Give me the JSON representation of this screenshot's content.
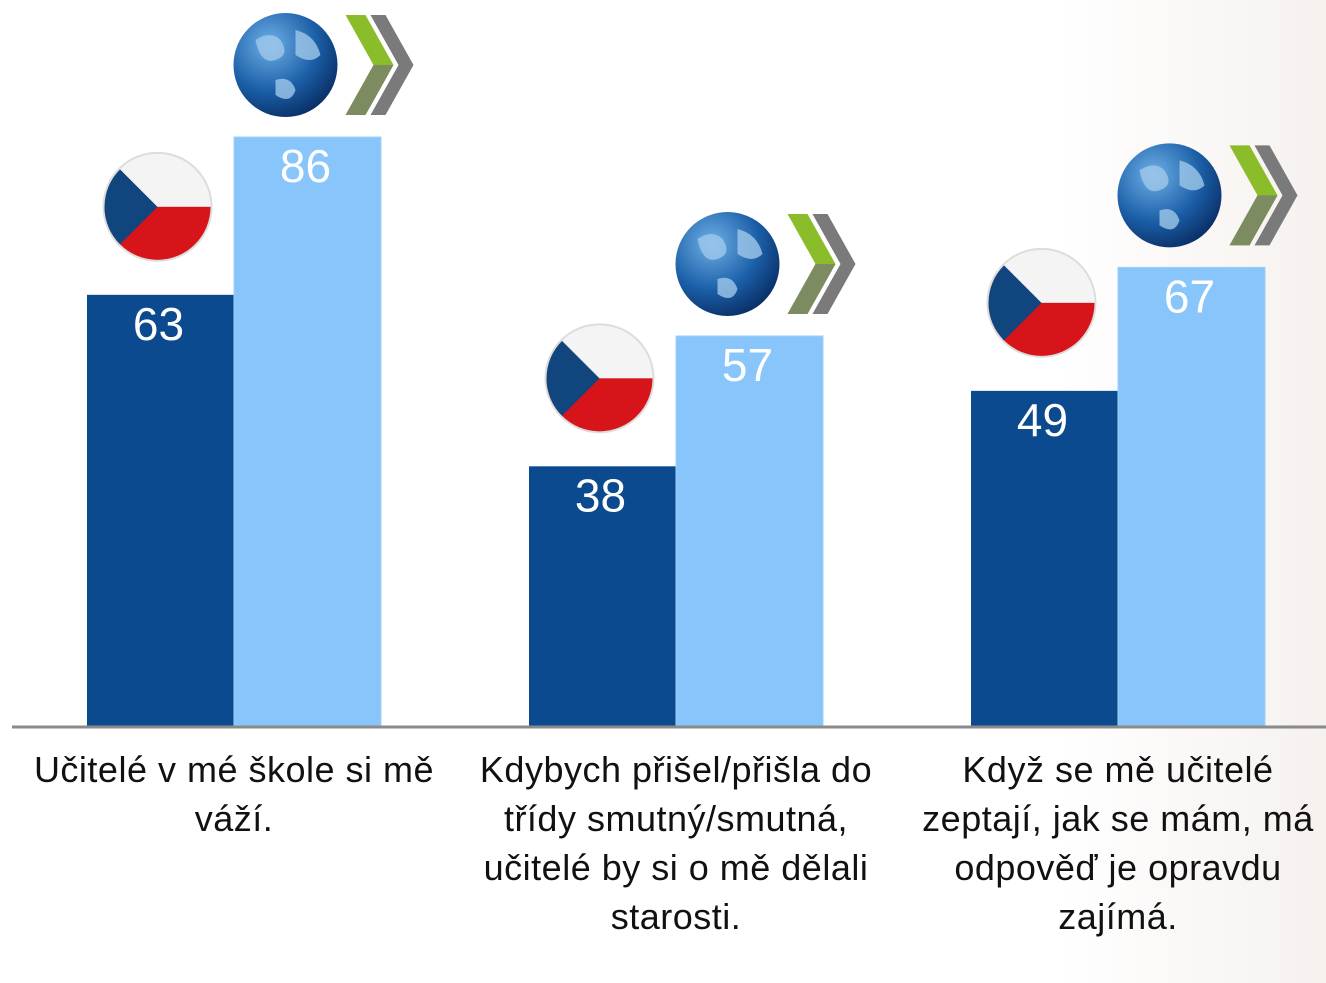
{
  "chart_data": {
    "type": "bar",
    "categories": [
      "Učitelé v mé škole si mě váží.",
      "Kdybych přišel/přišla do třídy smutný/smutná, učitelé by si o mě dělali starosti.",
      "Když se mě učitelé zeptají, jak se mám, má odpověď je opravdu zajímá."
    ],
    "series": [
      {
        "color": "#0b4a8e",
        "values": [
          63,
          38,
          49
        ]
      },
      {
        "color": "#88c5fa",
        "values": [
          86,
          57,
          67
        ]
      }
    ],
    "ylim": [
      0,
      100
    ]
  }
}
